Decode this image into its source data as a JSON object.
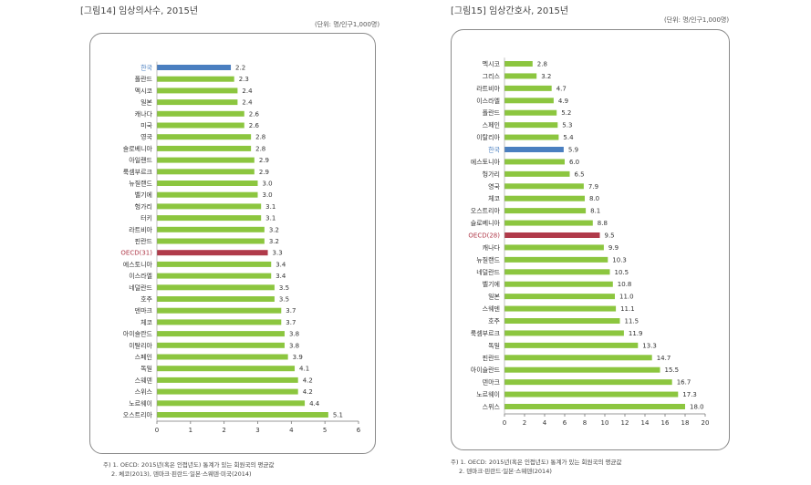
{
  "left": {
    "title": "[그림14] 임상의사수, 2015년",
    "unit": "(단위: 명/인구1,000명)",
    "notes": [
      "주) 1. OECD: 2015년(혹은 인접년도) 통계가 있는 회원국의 평균값",
      "2. 체코(2013), 덴마크·핀란드·일본·스웨덴·미국(2014)"
    ]
  },
  "right": {
    "title": "[그림15] 임상간호사, 2015년",
    "unit": "(단위: 명/인구1,000명)",
    "notes": [
      "주) 1. OECD: 2015년(혹은 인접년도) 통계가 있는 회원국의 평균값",
      "2. 덴마크·핀란드·일본·스웨덴(2014)"
    ]
  },
  "chart_data": [
    {
      "type": "bar",
      "orientation": "horizontal",
      "title": "[그림14] 임상의사수, 2015년",
      "unit": "(단위: 명/인구1,000명)",
      "categories": [
        "한국",
        "폴란드",
        "멕시코",
        "일본",
        "캐나다",
        "미국",
        "영국",
        "슬로베니아",
        "아일랜드",
        "룩셈부르크",
        "뉴질랜드",
        "벨기에",
        "헝가리",
        "터키",
        "라트비아",
        "핀란드",
        "OECD(31)",
        "에스토니아",
        "이스라엘",
        "네덜란드",
        "호주",
        "덴마크",
        "체코",
        "아이슬란드",
        "이탈리아",
        "스페인",
        "독일",
        "스웨덴",
        "스위스",
        "노르웨이",
        "오스트리아"
      ],
      "values": [
        2.2,
        2.3,
        2.4,
        2.4,
        2.6,
        2.6,
        2.8,
        2.8,
        2.9,
        2.9,
        3.0,
        3.0,
        3.1,
        3.1,
        3.2,
        3.2,
        3.3,
        3.4,
        3.4,
        3.5,
        3.5,
        3.7,
        3.7,
        3.8,
        3.8,
        3.9,
        4.1,
        4.2,
        4.2,
        4.4,
        5.1
      ],
      "value_labels": [
        "2.2",
        "2.3",
        "2.4",
        "2.4",
        "2.6",
        "2.6",
        "2.8",
        "2.8",
        "2.9",
        "2.9",
        "3.0",
        "3.0",
        "3.1",
        "3.1",
        "3.2",
        "3.2",
        "3.3",
        "3.4",
        "3.4",
        "3.5",
        "3.5",
        "3.7",
        "3.7",
        "3.8",
        "3.8",
        "3.9",
        "4.1",
        "4.2",
        "4.2",
        "4.4",
        "5.1"
      ],
      "highlight": {
        "한국": "#4a7fc0",
        "OECD(31)": "#b03a4a"
      },
      "bar_color": "#8cc63f",
      "xlim": [
        0,
        6
      ],
      "xticks": [
        "0",
        "1",
        "2",
        "3",
        "4",
        "5",
        "6"
      ],
      "grid": false
    },
    {
      "type": "bar",
      "orientation": "horizontal",
      "title": "[그림15] 임상간호사, 2015년",
      "unit": "(단위: 명/인구1,000명)",
      "categories": [
        "멕시코",
        "그리스",
        "라트비아",
        "이스라엘",
        "폴란드",
        "스페인",
        "이탈리아",
        "한국",
        "에스토니아",
        "헝가리",
        "영국",
        "체코",
        "오스트리아",
        "슬로베니아",
        "OECD(28)",
        "캐나다",
        "뉴질랜드",
        "네덜란드",
        "벨기에",
        "일본",
        "스웨덴",
        "호주",
        "룩셈부르크",
        "독일",
        "핀란드",
        "아이슬란드",
        "덴마크",
        "노르웨이",
        "스위스"
      ],
      "values": [
        2.8,
        3.2,
        4.7,
        4.9,
        5.2,
        5.3,
        5.4,
        5.9,
        6.0,
        6.5,
        7.9,
        8.0,
        8.1,
        8.8,
        9.5,
        9.9,
        10.3,
        10.5,
        10.8,
        11.0,
        11.1,
        11.5,
        11.9,
        13.3,
        14.7,
        15.5,
        16.7,
        17.3,
        18.0
      ],
      "value_labels": [
        "2.8",
        "3.2",
        "4.7",
        "4.9",
        "5.2",
        "5.3",
        "5.4",
        "5.9",
        "6.0",
        "6.5",
        "7.9",
        "8.0",
        "8.1",
        "8.8",
        "9.5",
        "9.9",
        "10.3",
        "10.5",
        "10.8",
        "11.0",
        "11.1",
        "11.5",
        "11.9",
        "13.3",
        "14.7",
        "15.5",
        "16.7",
        "17.3",
        "18.0"
      ],
      "highlight": {
        "한국": "#4a7fc0",
        "OECD(28)": "#b03a4a"
      },
      "bar_color": "#8cc63f",
      "xlim": [
        0,
        20
      ],
      "xticks": [
        "0",
        "2",
        "4",
        "6",
        "8",
        "10",
        "12",
        "14",
        "16",
        "18",
        "20"
      ],
      "grid": false
    }
  ]
}
